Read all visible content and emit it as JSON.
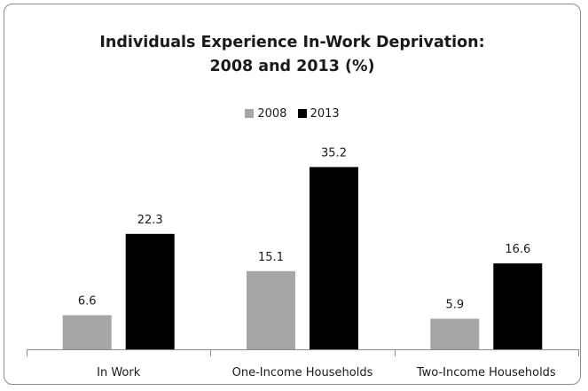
{
  "chart_data": {
    "type": "bar",
    "title": "Individuals Experience In-Work Deprivation: 2008 and 2013 (%)",
    "title_lines": [
      "Individuals Experience In-Work Deprivation:",
      "2008 and 2013 (%)"
    ],
    "categories": [
      "In Work",
      "One-Income Households",
      "Two-Income Households"
    ],
    "series": [
      {
        "name": "2008",
        "color": "#a6a6a6",
        "values": [
          6.6,
          15.1,
          5.9
        ]
      },
      {
        "name": "2013",
        "color": "#000000",
        "values": [
          22.3,
          35.2,
          16.6
        ]
      }
    ],
    "data_labels": [
      [
        "6.6",
        "15.1",
        "5.9"
      ],
      [
        "22.3",
        "35.2",
        "16.6"
      ]
    ],
    "ylim": [
      0,
      40
    ],
    "legend_position": "top",
    "grid": false,
    "yaxis_visible": false
  }
}
